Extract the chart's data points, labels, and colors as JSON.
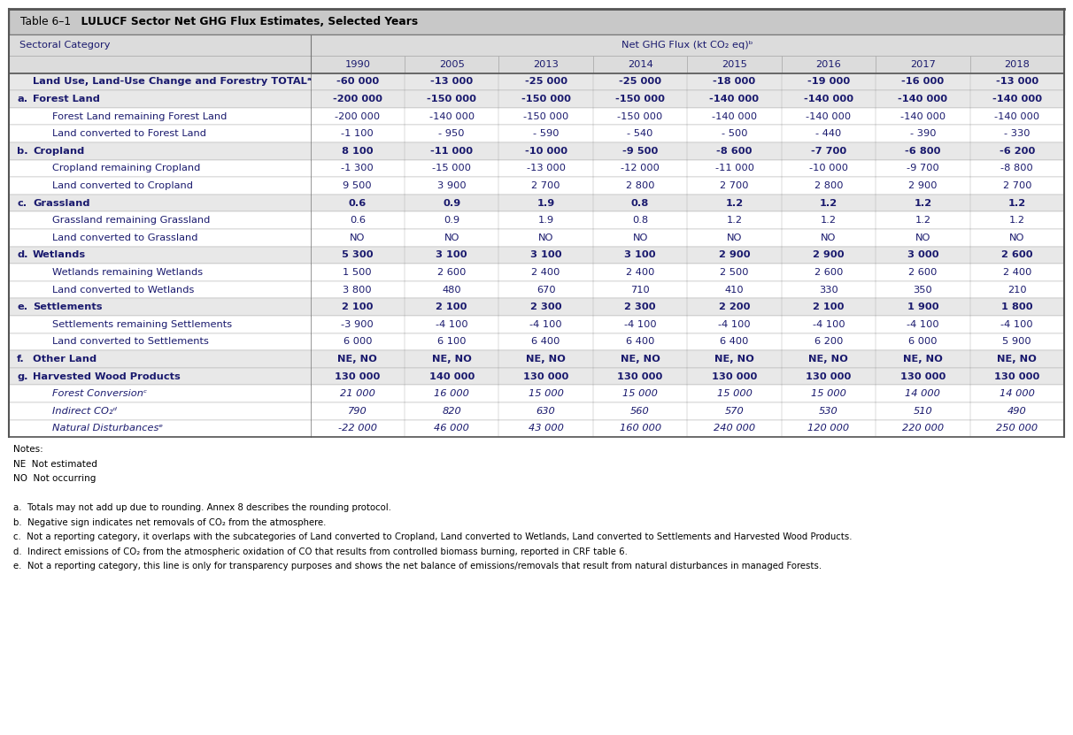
{
  "title_prefix": "Table 6–1",
  "title_bold": "  LULUCF Sector Net GHG Flux Estimates, Selected Years",
  "col_header_main": "Net GHG Flux (kt CO₂ eq)ᵇ",
  "col_header_sub": [
    "Sectoral Category",
    "1990",
    "2005",
    "2013",
    "2014",
    "2015",
    "2016",
    "2017",
    "2018"
  ],
  "rows": [
    {
      "indent": 0,
      "label": "Land Use, Land-Use Change and Forestry TOTALᵃ",
      "bold": true,
      "italic": false,
      "values": [
        "-60 000",
        "-13 000",
        "-25 000",
        "-25 000",
        "-18 000",
        "-19 000",
        "-16 000",
        "-13 000"
      ],
      "row_type": "total",
      "label_letter": ""
    },
    {
      "indent": 0,
      "label": "Forest Land",
      "bold": true,
      "italic": false,
      "values": [
        "-200 000",
        "-150 000",
        "-150 000",
        "-150 000",
        "-140 000",
        "-140 000",
        "-140 000",
        "-140 000"
      ],
      "row_type": "category",
      "label_letter": "a."
    },
    {
      "indent": 1,
      "label": "Forest Land remaining Forest Land",
      "bold": false,
      "italic": false,
      "values": [
        "-200 000",
        "-140 000",
        "-150 000",
        "-150 000",
        "-140 000",
        "-140 000",
        "-140 000",
        "-140 000"
      ],
      "row_type": "sub",
      "label_letter": ""
    },
    {
      "indent": 1,
      "label": "Land converted to Forest Land",
      "bold": false,
      "italic": false,
      "values": [
        "-1 100",
        "- 950",
        "- 590",
        "- 540",
        "- 500",
        "- 440",
        "- 390",
        "- 330"
      ],
      "row_type": "sub",
      "label_letter": ""
    },
    {
      "indent": 0,
      "label": "Cropland",
      "bold": true,
      "italic": false,
      "values": [
        "8 100",
        "-11 000",
        "-10 000",
        "-9 500",
        "-8 600",
        "-7 700",
        "-6 800",
        "-6 200"
      ],
      "row_type": "category",
      "label_letter": "b."
    },
    {
      "indent": 1,
      "label": "Cropland remaining Cropland",
      "bold": false,
      "italic": false,
      "values": [
        "-1 300",
        "-15 000",
        "-13 000",
        "-12 000",
        "-11 000",
        "-10 000",
        "-9 700",
        "-8 800"
      ],
      "row_type": "sub",
      "label_letter": ""
    },
    {
      "indent": 1,
      "label": "Land converted to Cropland",
      "bold": false,
      "italic": false,
      "values": [
        "9 500",
        "3 900",
        "2 700",
        "2 800",
        "2 700",
        "2 800",
        "2 900",
        "2 700"
      ],
      "row_type": "sub",
      "label_letter": ""
    },
    {
      "indent": 0,
      "label": "Grassland",
      "bold": true,
      "italic": false,
      "values": [
        "0.6",
        "0.9",
        "1.9",
        "0.8",
        "1.2",
        "1.2",
        "1.2",
        "1.2"
      ],
      "row_type": "category",
      "label_letter": "c."
    },
    {
      "indent": 1,
      "label": "Grassland remaining Grassland",
      "bold": false,
      "italic": false,
      "values": [
        "0.6",
        "0.9",
        "1.9",
        "0.8",
        "1.2",
        "1.2",
        "1.2",
        "1.2"
      ],
      "row_type": "sub",
      "label_letter": ""
    },
    {
      "indent": 1,
      "label": "Land converted to Grassland",
      "bold": false,
      "italic": false,
      "values": [
        "NO",
        "NO",
        "NO",
        "NO",
        "NO",
        "NO",
        "NO",
        "NO"
      ],
      "row_type": "sub",
      "label_letter": ""
    },
    {
      "indent": 0,
      "label": "Wetlands",
      "bold": true,
      "italic": false,
      "values": [
        "5 300",
        "3 100",
        "3 100",
        "3 100",
        "2 900",
        "2 900",
        "3 000",
        "2 600"
      ],
      "row_type": "category",
      "label_letter": "d."
    },
    {
      "indent": 1,
      "label": "Wetlands remaining Wetlands",
      "bold": false,
      "italic": false,
      "values": [
        "1 500",
        "2 600",
        "2 400",
        "2 400",
        "2 500",
        "2 600",
        "2 600",
        "2 400"
      ],
      "row_type": "sub",
      "label_letter": ""
    },
    {
      "indent": 1,
      "label": "Land converted to Wetlands",
      "bold": false,
      "italic": false,
      "values": [
        "3 800",
        "480",
        "670",
        "710",
        "410",
        "330",
        "350",
        "210"
      ],
      "row_type": "sub",
      "label_letter": ""
    },
    {
      "indent": 0,
      "label": "Settlements",
      "bold": true,
      "italic": false,
      "values": [
        "2 100",
        "2 100",
        "2 300",
        "2 300",
        "2 200",
        "2 100",
        "1 900",
        "1 800"
      ],
      "row_type": "category",
      "label_letter": "e."
    },
    {
      "indent": 1,
      "label": "Settlements remaining Settlements",
      "bold": false,
      "italic": false,
      "values": [
        "-3 900",
        "-4 100",
        "-4 100",
        "-4 100",
        "-4 100",
        "-4 100",
        "-4 100",
        "-4 100"
      ],
      "row_type": "sub",
      "label_letter": ""
    },
    {
      "indent": 1,
      "label": "Land converted to Settlements",
      "bold": false,
      "italic": false,
      "values": [
        "6 000",
        "6 100",
        "6 400",
        "6 400",
        "6 400",
        "6 200",
        "6 000",
        "5 900"
      ],
      "row_type": "sub",
      "label_letter": ""
    },
    {
      "indent": 0,
      "label": "Other Land",
      "bold": true,
      "italic": false,
      "values": [
        "NE, NO",
        "NE, NO",
        "NE, NO",
        "NE, NO",
        "NE, NO",
        "NE, NO",
        "NE, NO",
        "NE, NO"
      ],
      "row_type": "category",
      "label_letter": "f."
    },
    {
      "indent": 0,
      "label": "Harvested Wood Products",
      "bold": true,
      "italic": false,
      "values": [
        "130 000",
        "140 000",
        "130 000",
        "130 000",
        "130 000",
        "130 000",
        "130 000",
        "130 000"
      ],
      "row_type": "category",
      "label_letter": "g."
    },
    {
      "indent": 1,
      "label": "Forest Conversionᶜ",
      "bold": false,
      "italic": true,
      "values": [
        "21 000",
        "16 000",
        "15 000",
        "15 000",
        "15 000",
        "15 000",
        "14 000",
        "14 000"
      ],
      "row_type": "sub",
      "label_letter": ""
    },
    {
      "indent": 1,
      "label": "Indirect CO₂ᵈ",
      "bold": false,
      "italic": true,
      "values": [
        "790",
        "820",
        "630",
        "560",
        "570",
        "530",
        "510",
        "490"
      ],
      "row_type": "sub",
      "label_letter": ""
    },
    {
      "indent": 1,
      "label": "Natural Disturbancesᵉ",
      "bold": false,
      "italic": true,
      "values": [
        "-22 000",
        "46 000",
        "43 000",
        "160 000",
        "240 000",
        "120 000",
        "220 000",
        "250 000"
      ],
      "row_type": "sub",
      "label_letter": ""
    }
  ],
  "col_widths_rel": [
    3.2,
    1.0,
    1.0,
    1.0,
    1.0,
    1.0,
    1.0,
    1.0,
    1.0
  ],
  "title_bg": "#c8c8c8",
  "colheader_bg": "#dcdcdc",
  "category_bg": "#e8e8e8",
  "sub_bg": "#ffffff",
  "border_col": "#aaaaaa",
  "dark_blue": "#1a1a6e",
  "note_lines": [
    [
      "Notes:",
      false,
      7.5
    ],
    [
      "NE  Not estimated",
      false,
      7.5
    ],
    [
      "NO  Not occurring",
      false,
      7.5
    ],
    [
      "",
      false,
      7.5
    ],
    [
      "a.  Totals may not add up due to rounding. Annex 8 describes the rounding protocol.",
      false,
      7.3
    ],
    [
      "b.  Negative sign indicates net removals of CO₂ from the atmosphere.",
      false,
      7.3
    ],
    [
      "c.  Not a reporting category, it overlaps with the subcategories of Land converted to Cropland, Land converted to Wetlands, Land converted to Settlements and Harvested Wood Products.",
      false,
      7.3
    ],
    [
      "d.  Indirect emissions of CO₂ from the atmospheric oxidation of CO that results from controlled biomass burning, reported in CRF table 6.",
      false,
      7.3
    ],
    [
      "e.  Not a reporting category, this line is only for transparency purposes and shows the net balance of emissions/removals that result from natural disturbances in managed Forests.",
      false,
      7.3
    ]
  ]
}
